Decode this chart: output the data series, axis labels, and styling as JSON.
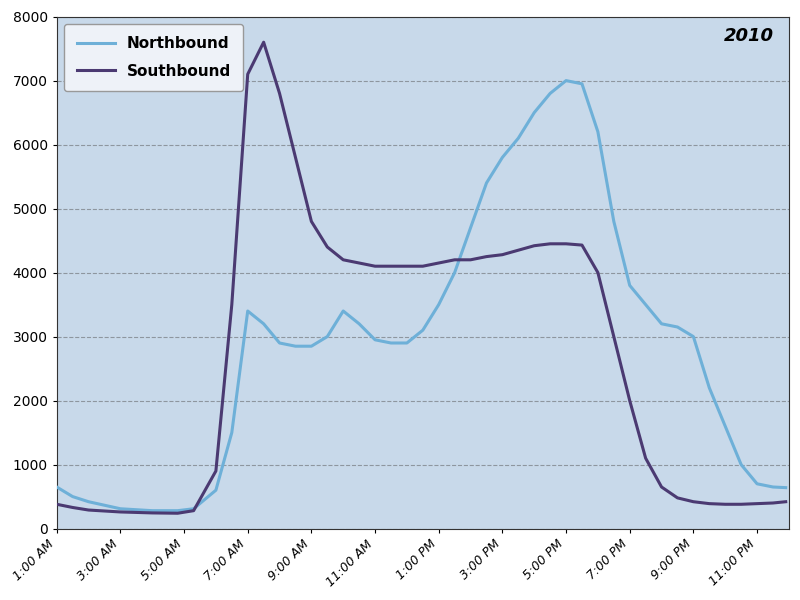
{
  "title": "2010",
  "figure_bg": "#FFFFFF",
  "plot_bg": "#C8D9EA",
  "northbound_color": "#6EB0D8",
  "southbound_color": "#4B3A72",
  "ylim": [
    0,
    8000
  ],
  "yticks": [
    0,
    1000,
    2000,
    3000,
    4000,
    5000,
    6000,
    7000,
    8000
  ],
  "x_labels": [
    "1:00 AM",
    "3:00 AM",
    "5:00 AM",
    "7:00 AM",
    "9:00 AM",
    "11:00 AM",
    "1:00 PM",
    "3:00 PM",
    "5:00 PM",
    "7:00 PM",
    "9:00 PM",
    "11:00 PM"
  ],
  "x_tick_positions": [
    1,
    3,
    5,
    7,
    9,
    11,
    13,
    15,
    17,
    19,
    21,
    23
  ],
  "xlim": [
    1,
    24
  ],
  "hours": [
    1,
    1.5,
    2,
    3,
    4,
    4.8,
    5.3,
    6.0,
    6.5,
    7.0,
    7.5,
    8.0,
    8.5,
    9.0,
    9.5,
    10.0,
    10.5,
    11.0,
    11.5,
    12.0,
    12.5,
    13.0,
    13.5,
    14.0,
    14.5,
    15.0,
    15.5,
    16.0,
    16.5,
    17.0,
    17.5,
    18.0,
    18.5,
    19.0,
    19.5,
    20.0,
    20.5,
    21.0,
    21.5,
    22.0,
    22.5,
    23.0,
    23.5,
    23.9
  ],
  "northbound": [
    650,
    500,
    420,
    310,
    280,
    280,
    310,
    600,
    1500,
    3400,
    3200,
    2900,
    2850,
    2850,
    3000,
    3400,
    3200,
    2950,
    2900,
    2900,
    3100,
    3500,
    4000,
    4700,
    5400,
    5800,
    6100,
    6500,
    6800,
    7000,
    6950,
    6200,
    4800,
    3800,
    3500,
    3200,
    3150,
    3000,
    2200,
    1600,
    1000,
    700,
    650,
    640
  ],
  "southbound": [
    380,
    330,
    290,
    260,
    245,
    240,
    280,
    900,
    3500,
    7100,
    7600,
    6800,
    5800,
    4800,
    4400,
    4200,
    4150,
    4100,
    4100,
    4100,
    4100,
    4150,
    4200,
    4200,
    4250,
    4280,
    4350,
    4420,
    4450,
    4450,
    4430,
    4000,
    3000,
    2000,
    1100,
    650,
    480,
    420,
    390,
    380,
    380,
    390,
    400,
    420
  ],
  "legend_northbound": "Northbound",
  "legend_southbound": "Southbound",
  "line_width": 2.2,
  "grid_color": "#555555",
  "grid_alpha": 0.5,
  "legend_bg": "#EEF2F8",
  "legend_edge": "#999999"
}
